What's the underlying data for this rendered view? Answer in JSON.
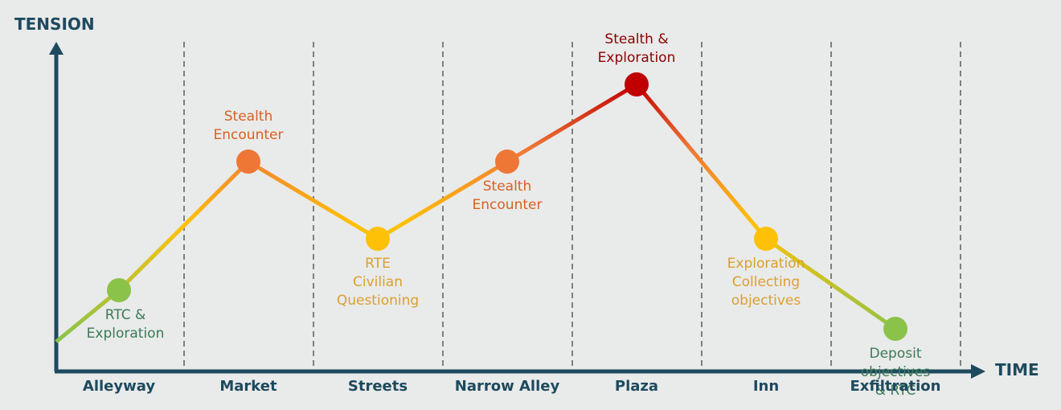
{
  "chart_data": {
    "type": "line",
    "xlabel": "TIME",
    "ylabel": "TENSION",
    "categories": [
      "Alleyway",
      "Market",
      "Streets",
      "Narrow Alley",
      "Plaza",
      "Inn",
      "Exfiltration"
    ],
    "start_value": 0,
    "values": [
      2,
      7,
      4,
      7,
      10,
      4,
      0.5
    ],
    "ylim": [
      0,
      12
    ],
    "point_labels": [
      [
        "RTC &",
        "Exploration"
      ],
      [
        "Stealth",
        "Encounter"
      ],
      [
        "RTE",
        "Civilian",
        "Questioning"
      ],
      [
        "Stealth",
        "Encounter"
      ],
      [
        "Stealth &",
        "Exploration"
      ],
      [
        "Exploration",
        "Collecting",
        "objectives"
      ],
      [
        "Deposit",
        "objectives",
        "& RTC"
      ]
    ],
    "point_colors": [
      "#8bc34a",
      "#ee7736",
      "#ffc107",
      "#ee7736",
      "#c00000",
      "#ffc107",
      "#8bc34a"
    ],
    "label_colors": [
      "#3b7a57",
      "#d9601e",
      "#dba02b",
      "#d9601e",
      "#8b0000",
      "#dba02b",
      "#3b7a57"
    ],
    "axis_color": "#1d4a5e",
    "divider_color": "#7f7f7f",
    "grid": false
  }
}
